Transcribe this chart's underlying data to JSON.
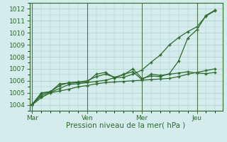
{
  "bg_color": "#d4ecec",
  "grid_color": "#aacccc",
  "line_color": "#2d6a2d",
  "xlabel": "Pression niveau de la mer( hPa )",
  "ylim": [
    1003.5,
    1012.5
  ],
  "yticks": [
    1004,
    1005,
    1006,
    1007,
    1008,
    1009,
    1010,
    1011,
    1012
  ],
  "xtick_labels": [
    "Mar",
    "Ven",
    "Mer",
    "Jeu"
  ],
  "xtick_positions": [
    0,
    3,
    6,
    9
  ],
  "series1": {
    "x": [
      0,
      0.5,
      1.0,
      1.5,
      2.0,
      2.5,
      3.0,
      3.5,
      4.0,
      4.5,
      5.0,
      5.5,
      6.0,
      6.5,
      7.0,
      7.5,
      8.0,
      8.5,
      9.0,
      9.5,
      10.0
    ],
    "y": [
      1004.0,
      1004.6,
      1005.0,
      1005.15,
      1005.3,
      1005.5,
      1005.6,
      1005.75,
      1005.85,
      1005.9,
      1005.95,
      1006.0,
      1006.05,
      1006.1,
      1006.15,
      1006.2,
      1006.35,
      1006.55,
      1006.7,
      1006.85,
      1007.0
    ]
  },
  "series2": {
    "x": [
      0,
      0.5,
      1.0,
      1.5,
      2.0,
      2.5,
      3.0,
      3.5,
      4.0,
      4.5,
      5.0,
      5.5,
      6.0,
      6.5,
      7.0,
      7.5,
      8.0,
      8.5,
      9.0,
      9.5,
      10.0
    ],
    "y": [
      1004.05,
      1005.0,
      1005.1,
      1005.75,
      1005.8,
      1005.85,
      1005.9,
      1006.55,
      1006.7,
      1006.25,
      1006.55,
      1006.75,
      1006.1,
      1006.55,
      1006.45,
      1006.55,
      1006.65,
      1006.75,
      1006.65,
      1006.6,
      1006.7
    ]
  },
  "series3": {
    "x": [
      0,
      0.5,
      1.0,
      1.5,
      2.0,
      2.5,
      3.0,
      3.5,
      4.0,
      4.5,
      5.0,
      5.5,
      6.0,
      6.5,
      7.0,
      7.5,
      8.0,
      8.5,
      9.0,
      9.5,
      10.0
    ],
    "y": [
      1004.05,
      1004.9,
      1005.1,
      1005.6,
      1005.85,
      1005.9,
      1006.0,
      1006.35,
      1006.55,
      1006.3,
      1006.5,
      1007.0,
      1006.2,
      1006.4,
      1006.35,
      1006.6,
      1007.65,
      1009.55,
      1010.25,
      1011.45,
      1011.9
    ]
  },
  "series4": {
    "x": [
      0,
      0.5,
      1.0,
      1.5,
      2.0,
      2.5,
      3.0,
      3.5,
      4.0,
      4.5,
      5.0,
      5.5,
      6.0,
      6.5,
      7.0,
      7.5,
      8.0,
      8.5,
      9.0,
      9.5,
      10.0
    ],
    "y": [
      1004.05,
      1004.75,
      1005.05,
      1005.35,
      1005.7,
      1005.75,
      1005.85,
      1005.95,
      1006.05,
      1006.25,
      1006.3,
      1006.55,
      1006.9,
      1007.55,
      1008.15,
      1009.0,
      1009.6,
      1010.1,
      1010.5,
      1011.4,
      1011.85
    ]
  }
}
